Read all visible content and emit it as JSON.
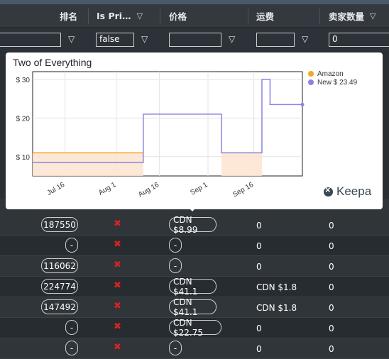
{
  "header": {
    "col_rank": "排名",
    "col_isprime": "Is Pri…",
    "col_price": "价格",
    "col_shipping": "运费",
    "col_sellers": "卖家数量"
  },
  "filters": {
    "isprime_value": "false",
    "sellers_value": "0"
  },
  "popup": {
    "title": "Two of Everything",
    "legend_amazon": "Amazon",
    "legend_new": "New $ 23.49",
    "brand": "Keepa",
    "colors": {
      "amazon": "#f5a623",
      "new": "#8a83e0"
    }
  },
  "chart_data": {
    "type": "line",
    "title": "Two of Everything",
    "x_ticks": [
      "Jul 16",
      "Aug 1",
      "Aug 16",
      "Sep 1",
      "Sep 16"
    ],
    "y_ticks": [
      "$ 10",
      "$ 20",
      "$ 30"
    ],
    "ylim": [
      5,
      32
    ],
    "legend_position": "top-right",
    "series": [
      {
        "name": "Amazon",
        "color": "#f5a623",
        "points": [
          [
            0,
            11
          ],
          [
            0.41,
            11
          ],
          [
            0.41,
            null
          ],
          [
            0.7,
            null
          ],
          [
            0.7,
            11
          ],
          [
            0.85,
            11
          ],
          [
            0.85,
            null
          ]
        ]
      },
      {
        "name": "New $ 23.49",
        "color": "#8a83e0",
        "points": [
          [
            0,
            8.5
          ],
          [
            0.41,
            8.5
          ],
          [
            0.41,
            21
          ],
          [
            0.7,
            21
          ],
          [
            0.7,
            11
          ],
          [
            0.85,
            11
          ],
          [
            0.85,
            30
          ],
          [
            0.88,
            30
          ],
          [
            0.88,
            23.49
          ],
          [
            1,
            23.49
          ]
        ]
      }
    ]
  },
  "rows": [
    {
      "rank": "187550",
      "price": "CDN $8.99",
      "shipping": "0",
      "sellers": "0"
    },
    {
      "rank": "-",
      "price": "-",
      "shipping": "0",
      "sellers": "0"
    },
    {
      "rank": "116062",
      "price": "-",
      "shipping": "0",
      "sellers": "0"
    },
    {
      "rank": "224774",
      "price": "CDN $41.1",
      "shipping": "CDN $1.8",
      "sellers": "0"
    },
    {
      "rank": "147492",
      "price": "CDN $41.1",
      "shipping": "CDN $1.8",
      "sellers": "0"
    },
    {
      "rank": "-",
      "price": "CDN $22.75",
      "shipping": "0",
      "sellers": "0"
    },
    {
      "rank": "-",
      "price": "-",
      "shipping": "0",
      "sellers": "0"
    }
  ],
  "icons": {
    "filter": "filter-icon",
    "not_prime": "x-icon"
  }
}
